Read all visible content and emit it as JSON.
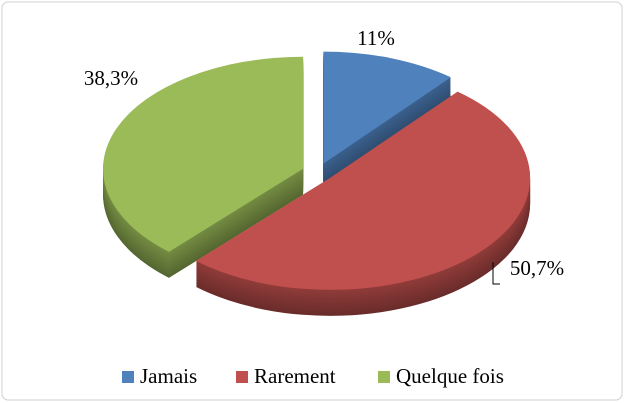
{
  "chart_data": {
    "type": "pie",
    "categories": [
      "Jamais",
      "Rarement",
      "Quelque fois"
    ],
    "values": [
      11,
      50.7,
      38.3
    ],
    "value_labels": [
      "11%",
      "50,7%",
      "38,3%"
    ],
    "colors": [
      "#4f81bd",
      "#c0504d",
      "#9bbb59"
    ],
    "legend": "bottom"
  }
}
